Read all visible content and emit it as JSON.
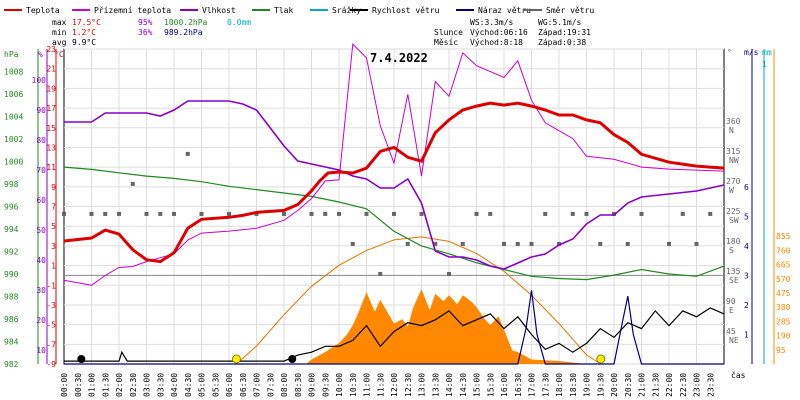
{
  "chart_data": {
    "type": "line",
    "date": "7.4.2022",
    "x_label": "čas",
    "legend": [
      {
        "name": "Teplota",
        "color": "#dd0000"
      },
      {
        "name": "Přízemní teplota",
        "color": "#cc00cc"
      },
      {
        "name": "Vlhkost",
        "color": "#8800cc"
      },
      {
        "name": "Tlak",
        "color": "#228822"
      },
      {
        "name": "Srážky",
        "color": "#00aacc"
      },
      {
        "name": "Rychlost větru",
        "color": "#000000"
      },
      {
        "name": "Náraz větru",
        "color": "#000088"
      },
      {
        "name": "Směr větru",
        "color": "#666666"
      }
    ],
    "stats": {
      "max_label": "max",
      "min_label": "min",
      "avg_label": "avg",
      "max_temp": "17.5°C",
      "max_hum": "95%",
      "max_press": "1000.2hPa",
      "max_rain": "0.0mm",
      "min_temp": "1.2°C",
      "min_hum": "36%",
      "min_press": "989.2hPa",
      "avg_temp": "9.9°C",
      "ws": "WS:3.3m/s",
      "wg": "WG:5.1m/s",
      "sun_label": "Slunce",
      "sun_rise": "Východ:06:16",
      "sun_set": "Západ:19:31",
      "moon_label": "Měsíc",
      "moon_rise": "Východ:8:18",
      "moon_set": "Západ:0:38"
    },
    "axes": {
      "hpa_unit": "hPa",
      "pct_unit": "%",
      "c_unit": "°C",
      "deg_unit": "°",
      "ms_unit": "m/s",
      "mm_unit": "mm",
      "hpa_ticks": [
        "1008",
        "1006",
        "1004",
        "1002",
        "1000",
        "998",
        "996",
        "994",
        "992",
        "990",
        "988",
        "986",
        "984",
        "982"
      ],
      "pct_ticks": [
        "100",
        "90",
        "80",
        "70",
        "60",
        "50",
        "40",
        "30",
        "20",
        "10"
      ],
      "c_ticks": [
        "23",
        "21",
        "19",
        "17",
        "15",
        "13",
        "11",
        "9",
        "7",
        "5",
        "3",
        "1",
        "-1",
        "-3",
        "-5",
        "-7",
        "-9"
      ],
      "dir_ticks": [
        {
          "deg": "360",
          "dir": "N"
        },
        {
          "deg": "315",
          "dir": "NW"
        },
        {
          "deg": "270",
          "dir": "W"
        },
        {
          "deg": "225",
          "dir": "SW"
        },
        {
          "deg": "180",
          "dir": "S"
        },
        {
          "deg": "135",
          "dir": "SE"
        },
        {
          "deg": "90",
          "dir": "E"
        },
        {
          "deg": "45",
          "dir": "NE"
        }
      ],
      "ms_ticks": [
        "6",
        "5",
        "4",
        "3",
        "2",
        "1"
      ],
      "mm_top": "1",
      "solar_ticks": [
        "855",
        "760",
        "665",
        "570",
        "475",
        "380",
        "285",
        "190",
        "95"
      ],
      "x_ticks": [
        "00:00",
        "00:30",
        "01:00",
        "01:30",
        "02:00",
        "02:30",
        "03:00",
        "03:30",
        "04:00",
        "04:30",
        "05:00",
        "05:30",
        "06:00",
        "06:30",
        "07:00",
        "07:30",
        "08:00",
        "08:30",
        "09:00",
        "09:30",
        "10:00",
        "10:30",
        "11:00",
        "11:30",
        "12:00",
        "12:30",
        "13:00",
        "13:30",
        "14:00",
        "14:30",
        "15:00",
        "15:30",
        "16:00",
        "16:30",
        "17:00",
        "17:30",
        "18:00",
        "18:30",
        "19:00",
        "19:30",
        "20:00",
        "20:30",
        "21:00",
        "21:30",
        "22:00",
        "22:30",
        "23:00",
        "23:30"
      ]
    },
    "temperature": [
      [
        0,
        3.5
      ],
      [
        1,
        3.8
      ],
      [
        1.5,
        4.6
      ],
      [
        2,
        4.2
      ],
      [
        2.5,
        2.6
      ],
      [
        3,
        1.6
      ],
      [
        3.5,
        1.4
      ],
      [
        4,
        2.3
      ],
      [
        4.5,
        4.8
      ],
      [
        5,
        5.7
      ],
      [
        6,
        5.9
      ],
      [
        6.5,
        6.1
      ],
      [
        7,
        6.4
      ],
      [
        8,
        6.6
      ],
      [
        8.5,
        7.2
      ],
      [
        9,
        8.6
      ],
      [
        9.3,
        9.6
      ],
      [
        9.6,
        10.4
      ],
      [
        10,
        10.5
      ],
      [
        10.5,
        10.4
      ],
      [
        11,
        10.9
      ],
      [
        11.5,
        12.6
      ],
      [
        12,
        13.0
      ],
      [
        12.5,
        12.0
      ],
      [
        13,
        11.6
      ],
      [
        13.5,
        14.5
      ],
      [
        14,
        15.8
      ],
      [
        14.5,
        16.8
      ],
      [
        15,
        17.2
      ],
      [
        15.5,
        17.5
      ],
      [
        16,
        17.3
      ],
      [
        16.5,
        17.5
      ],
      [
        17,
        17.2
      ],
      [
        17.5,
        16.8
      ],
      [
        18,
        16.3
      ],
      [
        18.5,
        16.3
      ],
      [
        19,
        15.8
      ],
      [
        19.5,
        15.5
      ],
      [
        20,
        14.3
      ],
      [
        20.5,
        13.5
      ],
      [
        21,
        12.3
      ],
      [
        22,
        11.5
      ],
      [
        23,
        11.1
      ],
      [
        23.5,
        11.0
      ],
      [
        24,
        10.9
      ]
    ],
    "ground_temperature": [
      [
        0,
        -0.5
      ],
      [
        1,
        -1.0
      ],
      [
        1.5,
        0.0
      ],
      [
        2,
        0.8
      ],
      [
        2.5,
        0.9
      ],
      [
        3,
        1.4
      ],
      [
        3.5,
        1.8
      ],
      [
        4,
        2.2
      ],
      [
        4.5,
        3.6
      ],
      [
        5,
        4.3
      ],
      [
        6,
        4.5
      ],
      [
        7,
        4.8
      ],
      [
        8,
        5.6
      ],
      [
        8.5,
        6.6
      ],
      [
        9,
        7.8
      ],
      [
        9.5,
        9.6
      ],
      [
        10,
        9.7
      ],
      [
        10.2,
        15.2
      ],
      [
        10.5,
        23.5
      ],
      [
        11,
        22.1
      ],
      [
        11.5,
        15.2
      ],
      [
        12,
        11.4
      ],
      [
        12.5,
        18.4
      ],
      [
        13,
        10.1
      ],
      [
        13.5,
        19.7
      ],
      [
        14,
        18.2
      ],
      [
        14.5,
        22.6
      ],
      [
        15,
        21.3
      ],
      [
        15.5,
        20.7
      ],
      [
        16,
        20.1
      ],
      [
        16.5,
        21.8
      ],
      [
        17,
        17.8
      ],
      [
        17.5,
        15.5
      ],
      [
        18,
        14.7
      ],
      [
        18.5,
        13.9
      ],
      [
        19,
        12.1
      ],
      [
        20,
        11.8
      ],
      [
        21,
        11.0
      ],
      [
        22,
        10.8
      ],
      [
        23,
        10.7
      ],
      [
        24,
        10.6
      ]
    ],
    "humidity": [
      [
        0,
        86
      ],
      [
        1,
        86
      ],
      [
        1.5,
        89
      ],
      [
        2,
        89
      ],
      [
        3,
        89
      ],
      [
        3.5,
        88
      ],
      [
        4,
        90
      ],
      [
        4.5,
        93
      ],
      [
        5,
        93
      ],
      [
        6,
        93
      ],
      [
        6.5,
        92
      ],
      [
        7,
        90
      ],
      [
        7.5,
        84
      ],
      [
        8,
        78
      ],
      [
        8.5,
        73
      ],
      [
        9,
        72
      ],
      [
        9.5,
        71
      ],
      [
        10,
        70
      ],
      [
        10.5,
        68
      ],
      [
        11,
        67
      ],
      [
        11.5,
        64
      ],
      [
        12,
        64
      ],
      [
        12.5,
        67
      ],
      [
        13,
        59
      ],
      [
        13.5,
        43
      ],
      [
        14,
        41
      ],
      [
        14.5,
        41
      ],
      [
        15,
        40
      ],
      [
        15.5,
        38
      ],
      [
        16,
        37
      ],
      [
        16.5,
        39
      ],
      [
        17,
        41
      ],
      [
        17.5,
        42
      ],
      [
        18,
        45
      ],
      [
        18.5,
        47
      ],
      [
        19,
        52
      ],
      [
        19.5,
        55
      ],
      [
        20,
        55
      ],
      [
        20.5,
        59
      ],
      [
        21,
        61
      ],
      [
        22,
        62
      ],
      [
        23,
        63
      ],
      [
        24,
        65
      ]
    ],
    "pressure": [
      [
        0,
        999.5
      ],
      [
        1,
        999.3
      ],
      [
        2,
        999.0
      ],
      [
        3,
        998.7
      ],
      [
        4,
        998.5
      ],
      [
        5,
        998.2
      ],
      [
        6,
        997.8
      ],
      [
        7,
        997.5
      ],
      [
        8,
        997.2
      ],
      [
        9,
        996.9
      ],
      [
        10,
        996.4
      ],
      [
        11,
        995.8
      ],
      [
        12,
        993.8
      ],
      [
        13,
        992.5
      ],
      [
        14,
        991.8
      ],
      [
        15,
        991.0
      ],
      [
        16,
        990.4
      ],
      [
        17,
        989.8
      ],
      [
        18,
        989.6
      ],
      [
        19,
        989.5
      ],
      [
        20,
        989.9
      ],
      [
        21,
        990.4
      ],
      [
        22,
        990.0
      ],
      [
        23,
        989.8
      ],
      [
        24,
        990.7
      ]
    ],
    "wind_speed": [
      [
        0,
        0.1
      ],
      [
        1,
        0.1
      ],
      [
        2,
        0.1
      ],
      [
        2.1,
        0.4
      ],
      [
        2.3,
        0.1
      ],
      [
        3,
        0.1
      ],
      [
        4,
        0.1
      ],
      [
        5,
        0.1
      ],
      [
        6,
        0.1
      ],
      [
        7,
        0.1
      ],
      [
        8,
        0.1
      ],
      [
        8.5,
        0.3
      ],
      [
        9,
        0.4
      ],
      [
        9.5,
        0.6
      ],
      [
        10,
        0.6
      ],
      [
        10.5,
        0.8
      ],
      [
        11,
        1.3
      ],
      [
        11.5,
        0.6
      ],
      [
        12,
        1.1
      ],
      [
        12.5,
        1.4
      ],
      [
        13,
        1.3
      ],
      [
        13.5,
        1.5
      ],
      [
        14,
        1.8
      ],
      [
        14.5,
        1.3
      ],
      [
        15,
        1.5
      ],
      [
        15.5,
        1.7
      ],
      [
        16,
        1.2
      ],
      [
        16.5,
        1.6
      ],
      [
        17,
        1.0
      ],
      [
        17.5,
        0.5
      ],
      [
        18,
        0.7
      ],
      [
        18.5,
        0.4
      ],
      [
        19,
        0.7
      ],
      [
        19.5,
        1.2
      ],
      [
        20,
        0.9
      ],
      [
        20.5,
        1.4
      ],
      [
        21,
        1.2
      ],
      [
        21.5,
        1.8
      ],
      [
        22,
        1.3
      ],
      [
        22.5,
        1.8
      ],
      [
        23,
        1.6
      ],
      [
        23.5,
        1.9
      ],
      [
        24,
        1.7
      ]
    ],
    "wind_gust": [
      [
        0,
        0
      ],
      [
        16.5,
        0
      ],
      [
        16.8,
        1.2
      ],
      [
        17,
        2.5
      ],
      [
        17.2,
        1.0
      ],
      [
        17.5,
        0
      ],
      [
        20,
        0
      ],
      [
        20.3,
        1.4
      ],
      [
        20.5,
        2.3
      ],
      [
        20.7,
        1.0
      ],
      [
        21,
        0
      ],
      [
        24,
        0
      ]
    ],
    "wind_direction": [
      [
        0,
        225
      ],
      [
        1,
        225
      ],
      [
        1.5,
        225
      ],
      [
        2,
        225
      ],
      [
        2.5,
        270
      ],
      [
        3,
        225
      ],
      [
        3.5,
        225
      ],
      [
        4,
        225
      ],
      [
        4.5,
        315
      ],
      [
        5,
        225
      ],
      [
        6,
        225
      ],
      [
        7,
        225
      ],
      [
        8,
        225
      ],
      [
        9,
        225
      ],
      [
        9.5,
        225
      ],
      [
        10,
        225
      ],
      [
        10.5,
        180
      ],
      [
        11,
        225
      ],
      [
        11.5,
        135
      ],
      [
        12,
        225
      ],
      [
        12.5,
        180
      ],
      [
        13,
        225
      ],
      [
        13.5,
        180
      ],
      [
        14,
        135
      ],
      [
        14.5,
        180
      ],
      [
        15,
        225
      ],
      [
        15.5,
        225
      ],
      [
        16,
        180
      ],
      [
        16.5,
        180
      ],
      [
        17,
        180
      ],
      [
        17.5,
        225
      ],
      [
        18,
        180
      ],
      [
        18.5,
        225
      ],
      [
        19,
        225
      ],
      [
        19.5,
        180
      ],
      [
        20,
        225
      ],
      [
        20.5,
        180
      ],
      [
        21,
        225
      ],
      [
        22,
        180
      ],
      [
        22.5,
        225
      ],
      [
        23,
        180
      ],
      [
        23.5,
        225
      ]
    ],
    "solar_radiation": [
      [
        0,
        0
      ],
      [
        8.8,
        0
      ],
      [
        9,
        30
      ],
      [
        9.5,
        80
      ],
      [
        10,
        140
      ],
      [
        10.3,
        200
      ],
      [
        10.5,
        260
      ],
      [
        10.7,
        340
      ],
      [
        11,
        480
      ],
      [
        11.3,
        350
      ],
      [
        11.5,
        430
      ],
      [
        12,
        270
      ],
      [
        12.3,
        300
      ],
      [
        12.5,
        250
      ],
      [
        12.7,
        380
      ],
      [
        13,
        500
      ],
      [
        13.3,
        360
      ],
      [
        13.5,
        470
      ],
      [
        13.8,
        420
      ],
      [
        14,
        460
      ],
      [
        14.3,
        400
      ],
      [
        14.5,
        460
      ],
      [
        14.8,
        420
      ],
      [
        15,
        380
      ],
      [
        15.3,
        300
      ],
      [
        15.5,
        260
      ],
      [
        15.8,
        320
      ],
      [
        16,
        230
      ],
      [
        16.3,
        90
      ],
      [
        16.5,
        80
      ],
      [
        17,
        30
      ],
      [
        18,
        20
      ],
      [
        19,
        0
      ],
      [
        24,
        0
      ]
    ],
    "theoretical_solar": [
      [
        6.27,
        0
      ],
      [
        7,
        120
      ],
      [
        8,
        330
      ],
      [
        9,
        520
      ],
      [
        10,
        660
      ],
      [
        11,
        760
      ],
      [
        12,
        830
      ],
      [
        13,
        850
      ],
      [
        14,
        820
      ],
      [
        15,
        740
      ],
      [
        16,
        620
      ],
      [
        17,
        460
      ],
      [
        18,
        270
      ],
      [
        19,
        60
      ],
      [
        19.52,
        0
      ]
    ],
    "sun_markers": [
      6.27,
      19.52
    ],
    "moon_markers": [
      0.63,
      8.3
    ]
  }
}
